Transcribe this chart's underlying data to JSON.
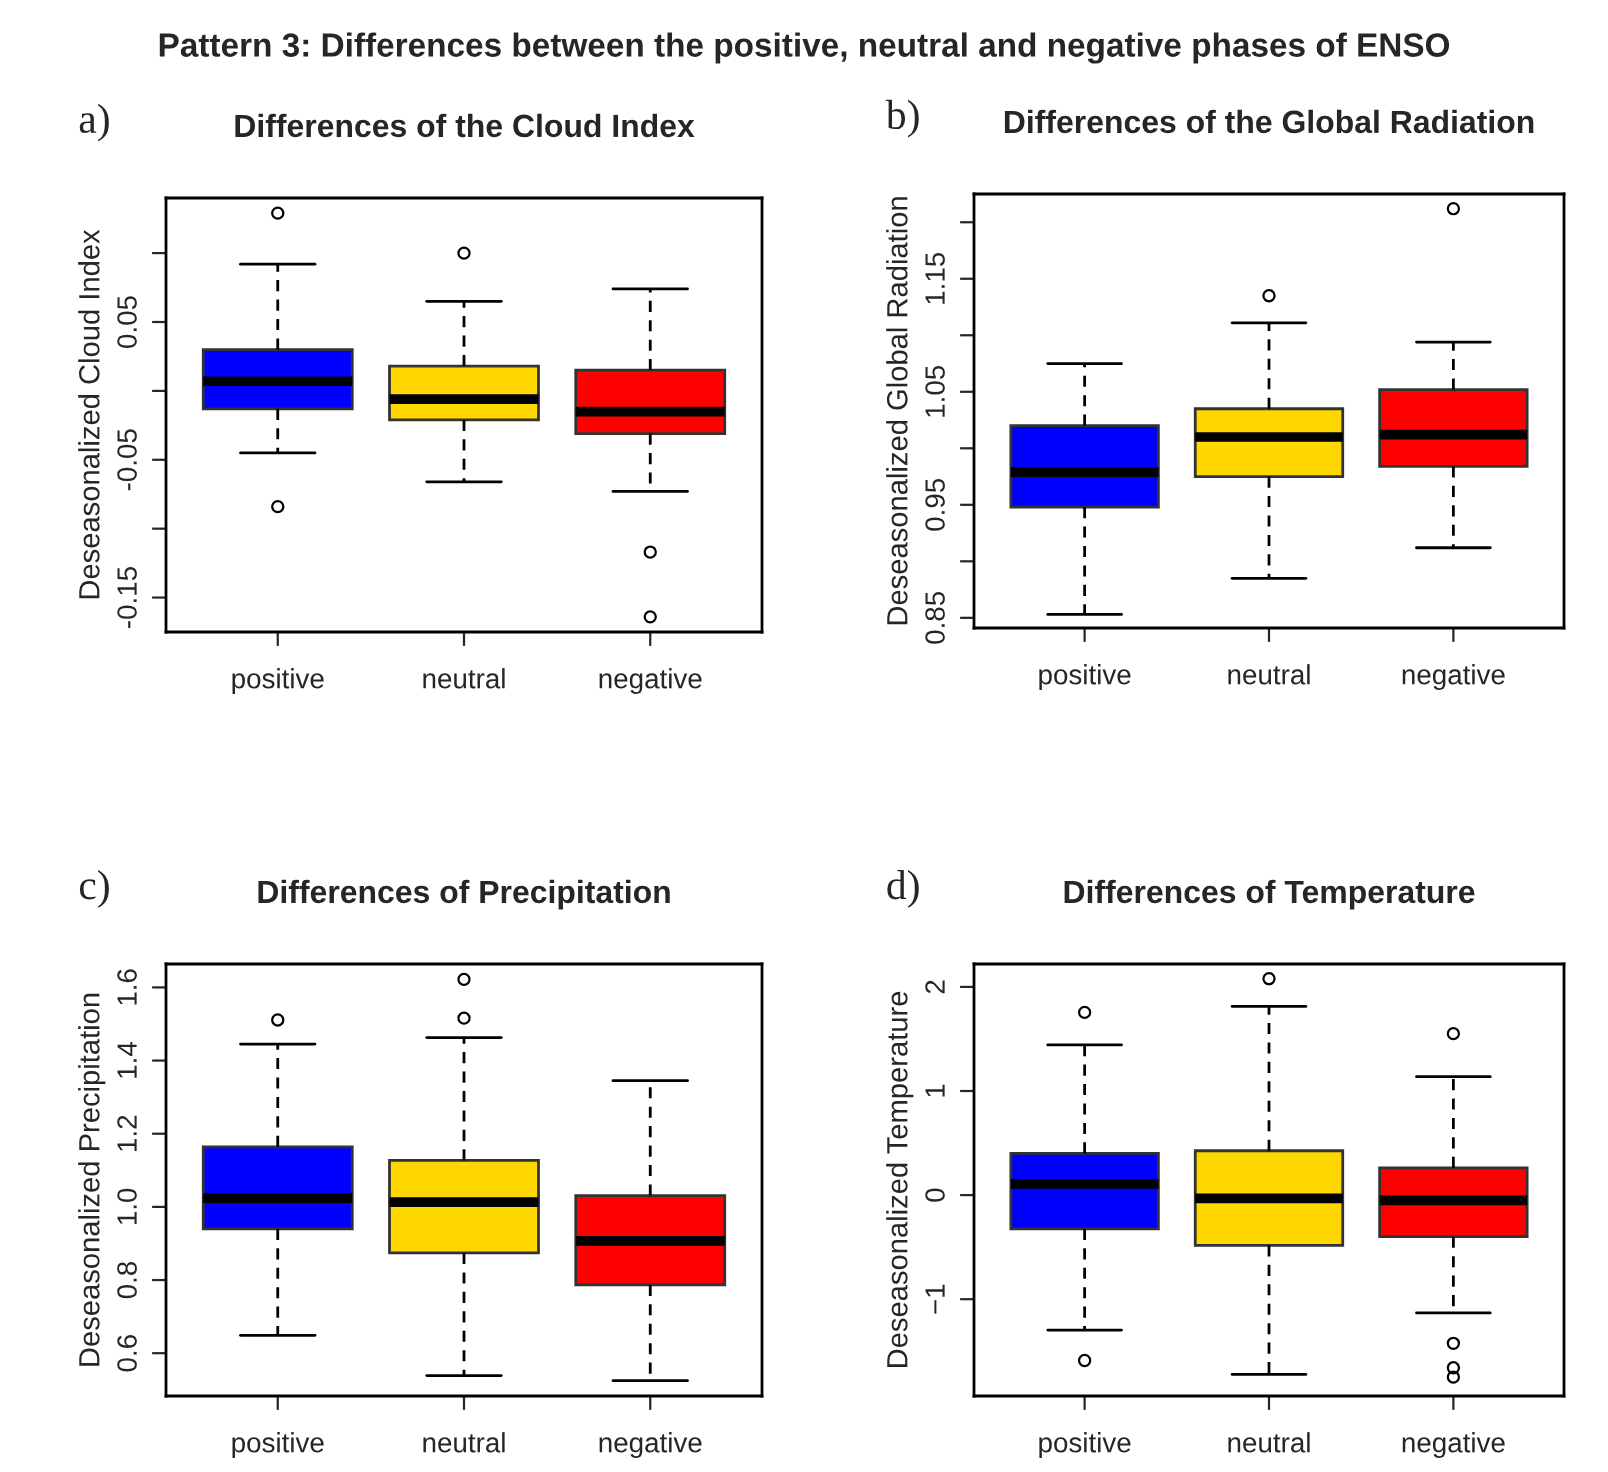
{
  "chart_data": [
    {
      "type": "box",
      "title": "Differences of the Cloud Index",
      "ylabel": "Deseasonalized Cloud Index",
      "categories": [
        "positive",
        "neutral",
        "negative"
      ],
      "colors": [
        "#0000ff",
        "#ffd700",
        "#ff0000"
      ],
      "boxes": [
        {
          "low": -0.045,
          "q1": -0.013,
          "median": 0.007,
          "q3": 0.03,
          "high": 0.092,
          "outliers": [
            0.129,
            -0.084
          ]
        },
        {
          "low": -0.066,
          "q1": -0.021,
          "median": -0.006,
          "q3": 0.018,
          "high": 0.065,
          "outliers": [
            0.1
          ]
        },
        {
          "low": -0.073,
          "q1": -0.031,
          "median": -0.015,
          "q3": 0.015,
          "high": 0.074,
          "outliers": [
            -0.117,
            -0.164
          ]
        }
      ],
      "ylim": [
        -0.175,
        0.14
      ],
      "yticks": [
        {
          "value": 0.1,
          "label": null
        },
        0.05,
        {
          "value": 0,
          "label": null
        },
        -0.05,
        {
          "value": -0.1,
          "label": null
        },
        -0.15
      ],
      "annotations": [
        "a)",
        "Pattern 3: Differences between the positive, neutral and negative phases of ENSO"
      ]
    },
    {
      "type": "box",
      "title": "Differences of the Global Radiation",
      "ylabel": "Deseasonalized Global Radiation",
      "categories": [
        "positive",
        "neutral",
        "negative"
      ],
      "colors": [
        "#0000ff",
        "#ffd700",
        "#ff0000"
      ],
      "boxes": [
        {
          "low": 0.853,
          "q1": 0.948,
          "median": 0.979,
          "q3": 1.02,
          "high": 1.075
        },
        {
          "low": 0.885,
          "q1": 0.975,
          "median": 1.01,
          "q3": 1.035,
          "high": 1.111,
          "outliers": [
            1.135
          ]
        },
        {
          "low": 0.912,
          "q1": 0.984,
          "median": 1.012,
          "q3": 1.052,
          "high": 1.094,
          "outliers": [
            1.212
          ]
        }
      ],
      "ylim": [
        0.841,
        1.225
      ],
      "yticks": [
        0.85,
        {
          "value": 0.9,
          "label": null
        },
        0.95,
        {
          "value": 1.0,
          "label": null
        },
        1.05,
        {
          "value": 1.1,
          "label": null
        },
        1.15,
        {
          "value": 1.2,
          "label": null
        }
      ],
      "annotations": [
        "b)"
      ]
    },
    {
      "type": "box",
      "title": "Differences of Precipitation",
      "ylabel": "Deseasonalized Precipitation",
      "categories": [
        "positive",
        "neutral",
        "negative"
      ],
      "colors": [
        "#0000ff",
        "#ffd700",
        "#ff0000"
      ],
      "boxes": [
        {
          "low": 0.649,
          "q1": 0.94,
          "median": 1.024,
          "q3": 1.164,
          "high": 1.445,
          "outliers": [
            1.511
          ]
        },
        {
          "low": 0.539,
          "q1": 0.874,
          "median": 1.013,
          "q3": 1.127,
          "high": 1.463,
          "outliers": [
            1.516,
            1.622
          ]
        },
        {
          "low": 0.525,
          "q1": 0.787,
          "median": 0.907,
          "q3": 1.031,
          "high": 1.345
        }
      ],
      "ylim": [
        0.483,
        1.664
      ],
      "yticks": [
        {
          "value": 0.6,
          "label": "0.6"
        },
        {
          "value": 0.8,
          "label": "0.8"
        },
        {
          "value": 1.0,
          "label": "1.0"
        },
        {
          "value": 1.2,
          "label": "1.2"
        },
        {
          "value": 1.4,
          "label": "1.4"
        },
        {
          "value": 1.6,
          "label": "1.6"
        }
      ],
      "annotations": [
        "c)"
      ]
    },
    {
      "type": "box",
      "title": "Differences of Temperature",
      "ylabel": "Deseasonalized Temperature",
      "categories": [
        "positive",
        "neutral",
        "negative"
      ],
      "colors": [
        "#0000ff",
        "#ffd700",
        "#ff0000"
      ],
      "boxes": [
        {
          "low": -1.297,
          "q1": -0.324,
          "median": 0.108,
          "q3": 0.4,
          "high": 1.443,
          "outliers": [
            1.755,
            -1.589
          ]
        },
        {
          "low": -1.723,
          "q1": -0.483,
          "median": -0.032,
          "q3": 0.426,
          "high": 1.812,
          "outliers": [
            2.079
          ]
        },
        {
          "low": -1.132,
          "q1": -0.4,
          "median": -0.051,
          "q3": 0.261,
          "high": 1.138,
          "outliers": [
            1.551,
            -1.424,
            -1.659,
            -1.748
          ]
        }
      ],
      "ylim": [
        -1.93,
        2.22
      ],
      "yticks": [
        {
          "value": -1,
          "label": "−1"
        },
        0,
        1,
        2
      ],
      "annotations": [
        "d)"
      ]
    }
  ]
}
